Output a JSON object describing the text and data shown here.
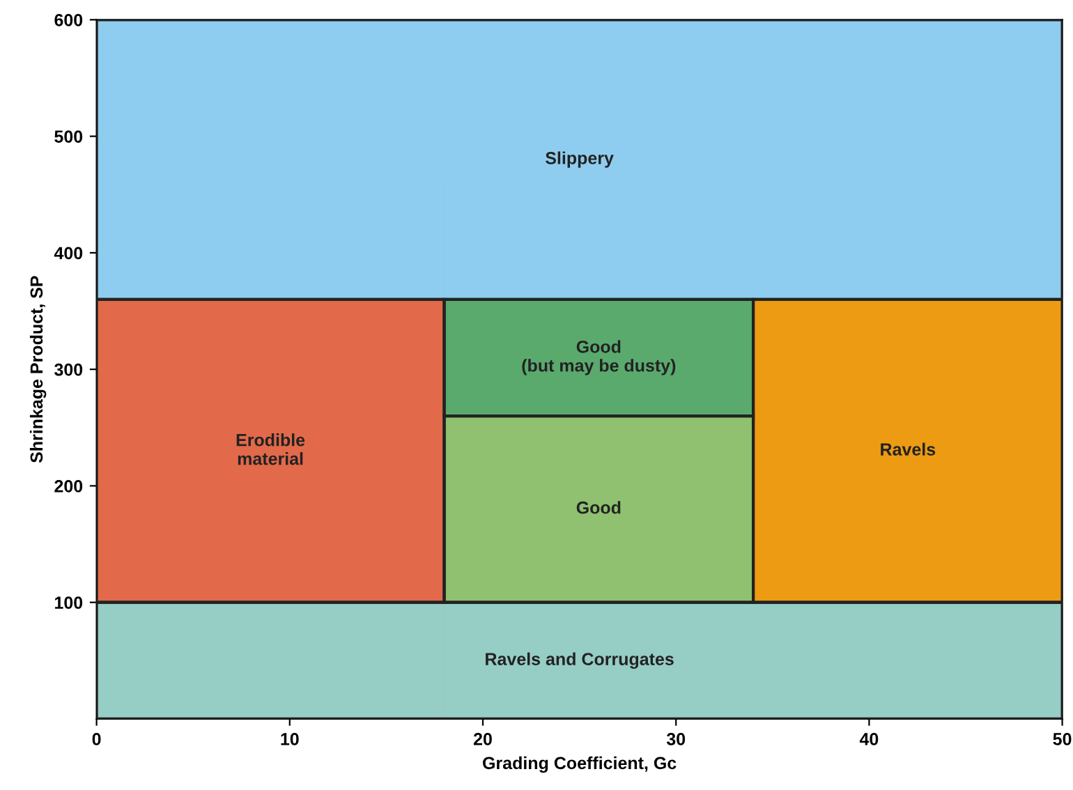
{
  "chart_data": {
    "type": "bar",
    "stacked": true,
    "xlabel": "Grading Coefficient, Gc",
    "ylabel": "Shrinkage Product, SP",
    "x": [
      9,
      26,
      42
    ],
    "xlim": [
      0,
      50
    ],
    "xticks": [
      0,
      10,
      20,
      30,
      40,
      50
    ],
    "ylim": [
      0,
      600
    ],
    "yticks": [
      100,
      200,
      300,
      400,
      500,
      600
    ],
    "series": [
      {
        "name": "Ravels and Corrugates",
        "color": "#96cdc5",
        "values": [
          100,
          100,
          100
        ]
      },
      {
        "name": "Erodible\nmaterial",
        "color": "#e2694a",
        "values": [
          260,
          null,
          null
        ]
      },
      {
        "name": "Good",
        "color": "#8fc170",
        "values": [
          null,
          160,
          null
        ]
      },
      {
        "name": "Good\n(but may be dusty)",
        "color": "#5aaa6e",
        "values": [
          null,
          100,
          null
        ]
      },
      {
        "name": "Ravels",
        "color": "#ec9b12",
        "values": [
          null,
          null,
          260
        ]
      },
      {
        "name": "Slippery",
        "color": "#8ecdef",
        "values": [
          240,
          240,
          240
        ]
      }
    ]
  }
}
